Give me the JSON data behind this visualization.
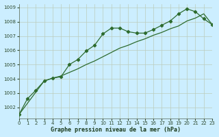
{
  "line1_x": [
    0,
    1,
    2,
    3,
    4,
    5,
    6,
    7,
    8,
    9,
    10,
    11,
    12,
    13,
    14,
    15,
    16,
    17,
    18,
    19,
    20,
    21,
    22,
    23
  ],
  "line1_y": [
    1001.5,
    1002.6,
    1003.2,
    1003.85,
    1004.05,
    1004.15,
    1005.0,
    1005.35,
    1005.95,
    1006.35,
    1007.15,
    1007.55,
    1007.55,
    1007.3,
    1007.2,
    1007.2,
    1007.45,
    1007.75,
    1008.05,
    1008.55,
    1008.9,
    1008.7,
    1008.2,
    1007.8
  ],
  "line2_x": [
    0,
    3,
    4,
    5,
    6,
    7,
    8,
    9,
    10,
    11,
    12,
    13,
    14,
    15,
    16,
    17,
    18,
    19,
    20,
    21,
    22,
    23
  ],
  "line2_y": [
    1001.5,
    1003.85,
    1004.05,
    1004.2,
    1004.45,
    1004.7,
    1005.0,
    1005.25,
    1005.55,
    1005.85,
    1006.15,
    1006.35,
    1006.6,
    1006.8,
    1007.05,
    1007.25,
    1007.5,
    1007.7,
    1008.05,
    1008.25,
    1008.55,
    1007.8
  ],
  "line_color": "#2d6b2d",
  "bg_color": "#cceeff",
  "grid_color": "#aaccaa",
  "xlabel": "Graphe pression niveau de la mer (hPa)",
  "xlim": [
    0,
    23
  ],
  "ylim": [
    1001.25,
    1009.25
  ],
  "yticks": [
    1002,
    1003,
    1004,
    1005,
    1006,
    1007,
    1008,
    1009
  ],
  "xticks": [
    0,
    1,
    2,
    3,
    4,
    5,
    6,
    7,
    8,
    9,
    10,
    11,
    12,
    13,
    14,
    15,
    16,
    17,
    18,
    19,
    20,
    21,
    22,
    23
  ]
}
